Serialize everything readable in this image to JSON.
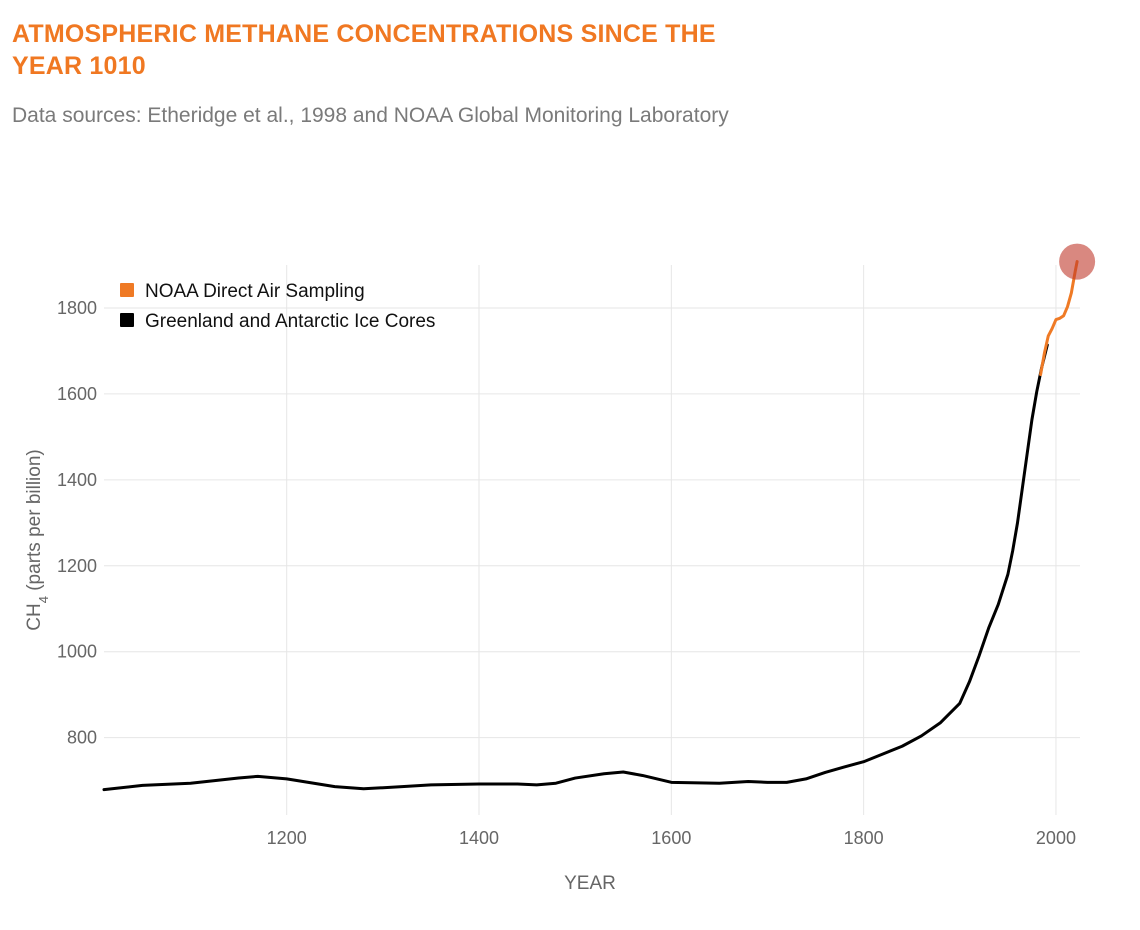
{
  "colors": {
    "title": "#f07822",
    "subtitle": "#7a7a7a",
    "noaa": "#ef7a25",
    "ice": "#000000",
    "marker": "#c0392b",
    "grid": "#e6e6e6",
    "axis_text": "#666666"
  },
  "chart_data": {
    "type": "line",
    "title": "ATMOSPHERIC METHANE CONCENTRATIONS SINCE THE YEAR 1010",
    "subtitle": "Data sources: Etheridge et al., 1998 and NOAA Global Monitoring Laboratory",
    "xlabel": "YEAR",
    "ylabel": {
      "main": "CH",
      "subscript": "4",
      "rest": " (parts per billion)"
    },
    "xlim": [
      1010,
      2025
    ],
    "ylim": [
      620,
      1900
    ],
    "xticks": [
      1200,
      1400,
      1600,
      1800,
      2000
    ],
    "yticks": [
      800,
      1000,
      1200,
      1400,
      1600,
      1800
    ],
    "grid": true,
    "legend_position": "top-left",
    "series": [
      {
        "name": "NOAA Direct Air Sampling",
        "color": "#ef7a25",
        "x": [
          1984,
          1988,
          1992,
          1996,
          2000,
          2004,
          2008,
          2012,
          2016,
          2020,
          2022
        ],
        "y": [
          1645,
          1695,
          1735,
          1752,
          1773,
          1776,
          1782,
          1803,
          1835,
          1885,
          1908
        ]
      },
      {
        "name": "Greenland and Antarctic Ice Cores",
        "color": "#000000",
        "x": [
          1010,
          1050,
          1100,
          1150,
          1170,
          1200,
          1250,
          1280,
          1320,
          1350,
          1400,
          1440,
          1460,
          1480,
          1500,
          1530,
          1550,
          1570,
          1600,
          1650,
          1680,
          1700,
          1720,
          1740,
          1760,
          1780,
          1800,
          1820,
          1840,
          1860,
          1880,
          1900,
          1910,
          1920,
          1930,
          1940,
          1950,
          1955,
          1960,
          1965,
          1970,
          1975,
          1980,
          1985,
          1991
        ],
        "y": [
          679,
          689,
          694,
          706,
          710,
          704,
          686,
          681,
          686,
          690,
          692,
          692,
          690,
          694,
          706,
          716,
          720,
          712,
          696,
          694,
          698,
          696,
          696,
          704,
          719,
          732,
          744,
          762,
          780,
          804,
          835,
          880,
          930,
          990,
          1055,
          1110,
          1180,
          1235,
          1300,
          1380,
          1460,
          1540,
          1605,
          1660,
          1714
        ]
      }
    ],
    "annotations": [
      {
        "type": "marker",
        "x": 2022,
        "y": 1908
      }
    ]
  }
}
